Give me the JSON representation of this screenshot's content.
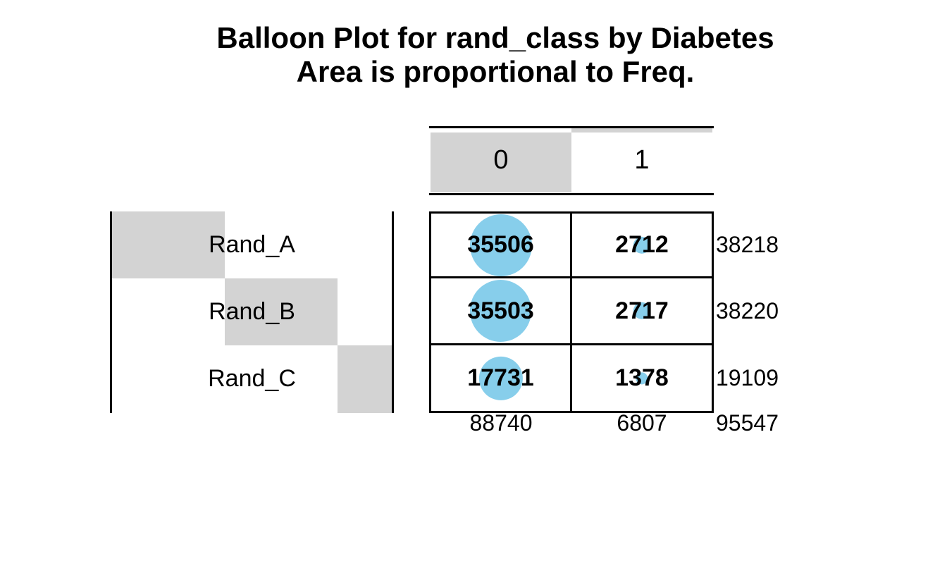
{
  "title": {
    "line1": "Balloon Plot for rand_class by Diabetes",
    "line2": "Area is proportional to Freq."
  },
  "chart_data": {
    "type": "balloon",
    "title": "Balloon Plot for rand_class by Diabetes",
    "subtitle": "Area is proportional to Freq.",
    "columns": [
      "0",
      "1"
    ],
    "rows": [
      "Rand_A",
      "Rand_B",
      "Rand_C"
    ],
    "values": [
      [
        35506,
        2712
      ],
      [
        35503,
        2717
      ],
      [
        17731,
        1378
      ]
    ],
    "row_totals": [
      38218,
      38220,
      19109
    ],
    "col_totals": [
      88740,
      6807
    ],
    "grand_total": 95547,
    "balloon_color": "#87CEEB",
    "margin_bar_color": "#D3D3D3",
    "line_color": "#000000",
    "legend_position": "none",
    "grid": true
  }
}
